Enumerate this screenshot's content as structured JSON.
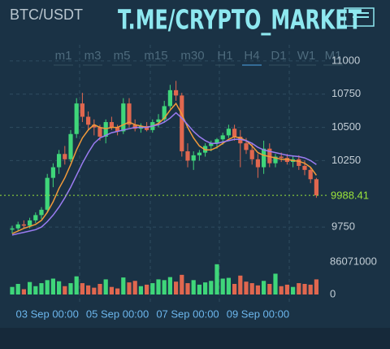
{
  "header": {
    "pair": "BTC/USDT",
    "watermark": "T.ME/CRYPTO_MARKET",
    "timeframes": [
      "m1",
      "m3",
      "m5",
      "m15",
      "m30",
      "H1",
      "H4",
      "D1",
      "W1",
      "M1"
    ],
    "active_timeframe": "H4"
  },
  "chart_data": {
    "type": "candlestick",
    "x": [
      null,
      null,
      null,
      null,
      null,
      null,
      "03 Sep 00:00",
      null,
      null,
      null,
      null,
      null,
      null,
      null,
      null,
      null,
      null,
      null,
      "05 Sep 00:00",
      null,
      null,
      null,
      null,
      null,
      null,
      null,
      null,
      null,
      null,
      null,
      "07 Sep 00:00",
      null,
      null,
      null,
      null,
      null,
      null,
      null,
      null,
      null,
      null,
      null,
      "09 Sep 00:00",
      null,
      null,
      null,
      null,
      null,
      null,
      null,
      null,
      null,
      null
    ],
    "open": [
      9730,
      9740,
      9770,
      9760,
      9800,
      9840,
      9880,
      10120,
      10200,
      10300,
      10260,
      10450,
      10680,
      10580,
      10520,
      10500,
      10430,
      10540,
      10500,
      10470,
      10680,
      10520,
      10490,
      10510,
      10480,
      10540,
      10560,
      10660,
      10780,
      10740,
      10320,
      10250,
      10290,
      10310,
      10360,
      10380,
      10410,
      10440,
      10490,
      10430,
      10380,
      10330,
      10260,
      10200,
      10340,
      10230,
      10280,
      10270,
      10240,
      10260,
      10210,
      10180,
      10110
    ],
    "high": [
      9760,
      9790,
      9800,
      9820,
      9860,
      9900,
      10150,
      10230,
      10330,
      10360,
      10480,
      10720,
      10760,
      10620,
      10560,
      10520,
      10560,
      10580,
      10520,
      10720,
      10720,
      10560,
      10530,
      10540,
      10560,
      10600,
      10700,
      10820,
      10850,
      10760,
      10380,
      10320,
      10330,
      10380,
      10400,
      10420,
      10460,
      10520,
      10520,
      10480,
      10420,
      10380,
      10300,
      10400,
      10380,
      10300,
      10310,
      10300,
      10280,
      10290,
      10250,
      10200,
      10120
    ],
    "low": [
      9700,
      9720,
      9740,
      9740,
      9780,
      9810,
      9860,
      10050,
      10150,
      10220,
      10240,
      10420,
      10540,
      10480,
      10440,
      10400,
      10380,
      10480,
      10440,
      10450,
      10500,
      10470,
      10460,
      10470,
      10460,
      10500,
      10540,
      10640,
      10700,
      10280,
      10200,
      10180,
      10250,
      10280,
      10320,
      10340,
      10370,
      10420,
      10400,
      10200,
      10300,
      10220,
      10120,
      10150,
      10200,
      10200,
      10240,
      10220,
      10200,
      10180,
      10140,
      10080,
      9970
    ],
    "close": [
      9740,
      9770,
      9760,
      9800,
      9840,
      9880,
      10120,
      10200,
      10300,
      10260,
      10450,
      10680,
      10580,
      10520,
      10500,
      10430,
      10540,
      10500,
      10470,
      10680,
      10520,
      10490,
      10510,
      10480,
      10540,
      10560,
      10660,
      10780,
      10740,
      10320,
      10250,
      10290,
      10310,
      10360,
      10380,
      10410,
      10440,
      10490,
      10430,
      10380,
      10330,
      10260,
      10200,
      10340,
      10230,
      10280,
      10270,
      10240,
      10260,
      10210,
      10180,
      10110,
      9988.41
    ],
    "up_color": "#3fd67a",
    "down_color": "#e0674f",
    "ma_lines": [
      {
        "color": "#f29a3a",
        "values": [
          9700,
          9720,
          9740,
          9755,
          9770,
          9800,
          9860,
          9940,
          10040,
          10120,
          10220,
          10330,
          10420,
          10480,
          10520,
          10500,
          10490,
          10500,
          10500,
          10520,
          10540,
          10520,
          10510,
          10500,
          10510,
          10530,
          10570,
          10630,
          10680,
          10600,
          10500,
          10420,
          10360,
          10330,
          10330,
          10350,
          10380,
          10410,
          10430,
          10420,
          10400,
          10360,
          10310,
          10290,
          10280,
          10270,
          10260,
          10260,
          10250,
          10245,
          10230,
          10200,
          10140
        ]
      },
      {
        "color": "#9b7cf2",
        "values": [
          9690,
          9700,
          9710,
          9720,
          9730,
          9750,
          9790,
          9840,
          9900,
          9970,
          10050,
          10140,
          10230,
          10310,
          10380,
          10420,
          10440,
          10460,
          10470,
          10480,
          10490,
          10500,
          10500,
          10500,
          10510,
          10520,
          10540,
          10570,
          10610,
          10570,
          10520,
          10470,
          10430,
          10400,
          10380,
          10380,
          10390,
          10400,
          10410,
          10410,
          10400,
          10380,
          10350,
          10330,
          10320,
          10310,
          10300,
          10290,
          10285,
          10280,
          10270,
          10250,
          10220
        ]
      }
    ],
    "ylim": [
      9530,
      11122
    ],
    "yticks": [
      9750,
      10250,
      10500,
      10750,
      11000
    ],
    "grid": true,
    "last_price": 9988.41,
    "last_price_color": "#9be33a",
    "volume": {
      "values": [
        20000000,
        28000000,
        14000000,
        33000000,
        22000000,
        30000000,
        38000000,
        42000000,
        35000000,
        22000000,
        30000000,
        48000000,
        30000000,
        24000000,
        18000000,
        28000000,
        40000000,
        20000000,
        16000000,
        45000000,
        32000000,
        36000000,
        22000000,
        26000000,
        30000000,
        40000000,
        38000000,
        46000000,
        34000000,
        52000000,
        30000000,
        38000000,
        26000000,
        32000000,
        36000000,
        80000000,
        42000000,
        44000000,
        28000000,
        50000000,
        34000000,
        30000000,
        24000000,
        36000000,
        28000000,
        55000000,
        22000000,
        26000000,
        20000000,
        30000000,
        28000000,
        26000000,
        40000000
      ],
      "ylim": [
        0,
        86071000
      ],
      "yticks": [
        0,
        86071000
      ]
    }
  }
}
